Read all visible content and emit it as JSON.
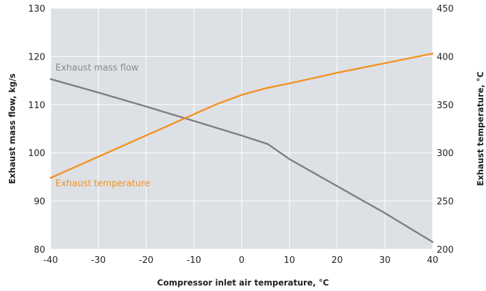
{
  "chart_data": {
    "type": "line",
    "xlabel": "Compressor inlet air temperature, °C",
    "ylabel_left": "Exhaust mass flow, kg/s",
    "ylabel_right": "Exhaust temperature, °C",
    "xlim": [
      -40,
      40
    ],
    "ylim_left": [
      80,
      130
    ],
    "ylim_right": [
      200,
      450
    ],
    "xticks": [
      -40,
      -30,
      -20,
      -10,
      0,
      10,
      20,
      30,
      40
    ],
    "yticks_left": [
      80,
      90,
      100,
      110,
      120,
      130
    ],
    "yticks_right": [
      200,
      250,
      300,
      350,
      400,
      450
    ],
    "grid": true,
    "background": "#dde0e5",
    "series": [
      {
        "name": "Exhaust mass flow",
        "axis": "left",
        "color": "#7f7f7f",
        "x": [
          -40,
          -30,
          -20,
          -10,
          0,
          5.5,
          10,
          20,
          30,
          40
        ],
        "y": [
          115.3,
          112.5,
          109.6,
          106.6,
          103.6,
          101.8,
          98.7,
          93.1,
          87.5,
          81.5
        ]
      },
      {
        "name": "Exhaust temperature",
        "axis": "right",
        "color": "#f39321",
        "x": [
          -40,
          -30,
          -20,
          -10,
          -5,
          0,
          5,
          10,
          20,
          30,
          40
        ],
        "y": [
          274,
          296,
          318,
          340,
          351,
          360,
          367,
          372,
          383,
          393,
          403
        ]
      }
    ]
  }
}
